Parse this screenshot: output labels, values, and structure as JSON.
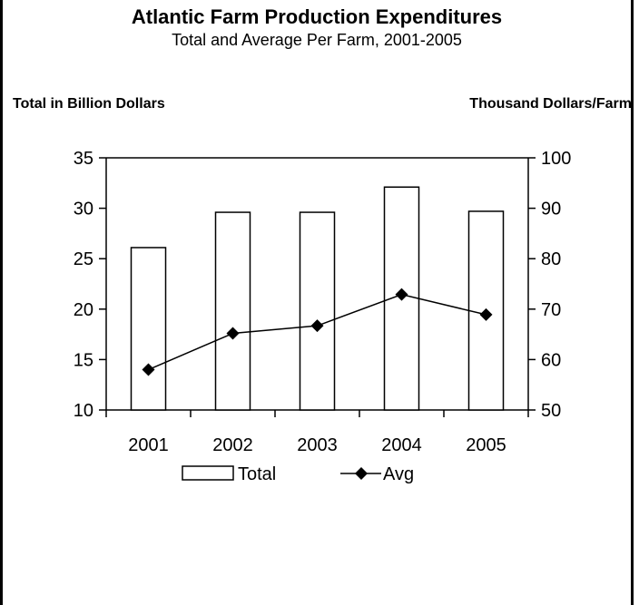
{
  "chart_data": {
    "type": "bar",
    "title": "Atlantic Farm Production Expenditures",
    "subtitle": "Total and Average Per Farm, 2001-2005",
    "ylabel": "Total in Billion Dollars",
    "ylabel_right": "Thousand Dollars/Farm",
    "categories": [
      "2001",
      "2002",
      "2003",
      "2004",
      "2005"
    ],
    "ylim": [
      10,
      35
    ],
    "yticks": [
      10,
      15,
      20,
      25,
      30,
      35
    ],
    "ylim_right": [
      50,
      100
    ],
    "yticks_right": [
      50,
      60,
      70,
      80,
      90,
      100
    ],
    "series": [
      {
        "name": "Total",
        "type": "bar",
        "axis": "left",
        "values": [
          26.1,
          29.6,
          29.6,
          32.1,
          29.7
        ],
        "color": "#ffffff"
      },
      {
        "name": "Avg",
        "type": "line",
        "axis": "right",
        "values": [
          58.0,
          65.2,
          66.7,
          72.9,
          68.9
        ],
        "color": "#000000"
      }
    ],
    "legend": "bottom",
    "grid": false
  }
}
